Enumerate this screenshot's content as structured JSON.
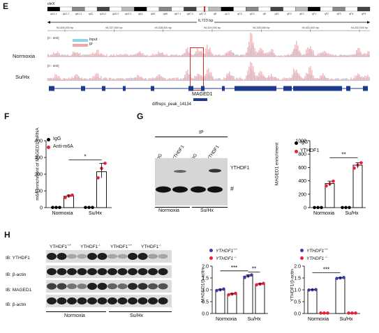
{
  "panel_labels": {
    "E": "E",
    "F": "F",
    "G": "G",
    "H": "H"
  },
  "panelE": {
    "chrom": "chrX",
    "bands": [
      "qA1.1",
      "qA1.2",
      "qA1.3",
      "qA2",
      "qA3.1",
      "qA3.2",
      "qA3.3",
      "qA4",
      "qA5",
      "qA6",
      "qA7.1",
      "qA7.2",
      "qA7.3",
      "qB",
      "qC1",
      "qC2",
      "qC3",
      "qD",
      "qE1",
      "qE2",
      "qE3",
      "qF1",
      "qF2",
      "qF3",
      "qF4",
      "qF5"
    ],
    "scale": "6,723 bp",
    "coords": [
      "94,326,000 bp",
      "94,327,000 bp",
      "94,328,000 bp",
      "94,329,000 bp",
      "94,330,000 bp",
      "94,331,000 bp",
      "94,332,000 bp"
    ],
    "range1": "[0 - 600]",
    "range2": "[0 - 600]",
    "legend_input": "Input",
    "legend_ip": "IP",
    "track_normoxia": "Normoxia",
    "track_suhx": "Su/Hx",
    "gene": "MAGED1",
    "peak": "diffreps_peak_14134"
  },
  "chart_data": [
    {
      "type": "bar",
      "panel": "F",
      "ylabel": "m6A enrichment of MAGED1 mRNA",
      "ylim": [
        0,
        400
      ],
      "yticks": [
        "0",
        "100",
        "200",
        "300",
        "400"
      ],
      "categories": [
        "Normoxia",
        "Su/Hx"
      ],
      "series": [
        {
          "name": "IgG",
          "values": [
            1,
            1
          ],
          "points": [
            [
              1,
              1,
              1
            ],
            [
              1,
              1,
              1
            ]
          ],
          "color": "#000000"
        },
        {
          "name": "Anti-m6A",
          "values": [
            68,
            215
          ],
          "points": [
            [
              60,
              70,
              75
            ],
            [
              178,
              235,
              265
            ]
          ],
          "color": "#e8203a"
        }
      ],
      "significance": "*"
    },
    {
      "type": "bar",
      "panel": "G",
      "ylabel": "MAGED1 enrichment",
      "ylim": [
        0,
        1000
      ],
      "yticks": [
        "0",
        "200",
        "400",
        "600",
        "800",
        "1000"
      ],
      "categories": [
        "Normoxia",
        "Su/Hx"
      ],
      "series": [
        {
          "name": "IgG",
          "values": [
            1,
            1
          ],
          "points": [
            [
              1,
              1,
              1
            ],
            [
              1,
              1,
              1
            ]
          ],
          "color": "#000000"
        },
        {
          "name": "YTHDF1",
          "values": [
            360,
            635
          ],
          "points": [
            [
              325,
              355,
              395
            ],
            [
              590,
              635,
              670
            ]
          ],
          "color": "#e8203a"
        }
      ],
      "significance": "**"
    },
    {
      "type": "bar",
      "panel": "H1",
      "ylabel": "MAGED1/β-actin",
      "ylim": [
        0,
        2.0
      ],
      "yticks": [
        "0.0",
        "0.5",
        "1.0",
        "1.5",
        "2.0"
      ],
      "categories": [
        "Normoxia",
        "Su/Hx"
      ],
      "series": [
        {
          "name": "YTHDF1+/+",
          "values": [
            1.0,
            1.58
          ],
          "points": [
            [
              0.97,
              1.0,
              1.03
            ],
            [
              1.52,
              1.58,
              1.63
            ]
          ],
          "color": "#3c3ca8"
        },
        {
          "name": "YTHDF1-/-",
          "values": [
            0.82,
            1.24
          ],
          "points": [
            [
              0.79,
              0.82,
              0.85
            ],
            [
              1.21,
              1.24,
              1.27
            ]
          ],
          "color": "#e8203a"
        }
      ],
      "significance": [
        "***",
        "**"
      ]
    },
    {
      "type": "bar",
      "panel": "H2",
      "ylabel": "YTHDF1/β-actin",
      "ylim": [
        0,
        2.0
      ],
      "yticks": [
        "0.0",
        "0.5",
        "1.0",
        "1.5",
        "2.0"
      ],
      "categories": [
        "Normoxia",
        "Su/Hx"
      ],
      "series": [
        {
          "name": "YTHDF1+/+",
          "values": [
            1.0,
            1.5
          ],
          "points": [
            [
              0.99,
              1.0,
              1.01
            ],
            [
              1.48,
              1.5,
              1.52
            ]
          ],
          "color": "#3c3ca8"
        },
        {
          "name": "YTHDF1-/-",
          "values": [
            0.02,
            0.02
          ],
          "points": [
            [
              0.02,
              0.02,
              0.02
            ],
            [
              0.02,
              0.02,
              0.02
            ]
          ],
          "color": "#e8203a"
        }
      ],
      "significance": [
        "***"
      ]
    }
  ],
  "panelF": {
    "legend": [
      "IgG",
      "Anti-m6A"
    ],
    "ylabel": "m6A enrichment of MAGED1 mRNA",
    "x": [
      "Normoxia",
      "Su/Hx"
    ]
  },
  "panelG": {
    "ip": "IP",
    "lanes": [
      "IgG",
      "YTHDF1",
      "IgG",
      "YTHDF1"
    ],
    "band_label": "YTHDF1",
    "hash": "#",
    "groups": [
      "Normoxia",
      "Su/Hx"
    ],
    "legend": [
      "IgG",
      "YTHDF1"
    ],
    "ylabel": "MAGED1 enrichment",
    "x": [
      "Normoxia",
      "Su/Hx"
    ]
  },
  "panelH": {
    "genotypes": [
      "YTHDF1+/+",
      "YTHDF1-/-",
      "YTHDF1+/+",
      "YTHDF1-/-"
    ],
    "rows": [
      "IB: YTHDF1",
      "IB: β-actin",
      "IB: MAGED1",
      "IB: β-actin"
    ],
    "groups": [
      "Normoxia",
      "Su/Hx"
    ],
    "legend": [
      "YTHDF1+/+",
      "YTHDF1-/-"
    ],
    "ylabel1": "MAGED1/β-actin",
    "ylabel2": "YTHDF1/β-actin",
    "x": [
      "Normoxia",
      "Su/Hx"
    ]
  }
}
